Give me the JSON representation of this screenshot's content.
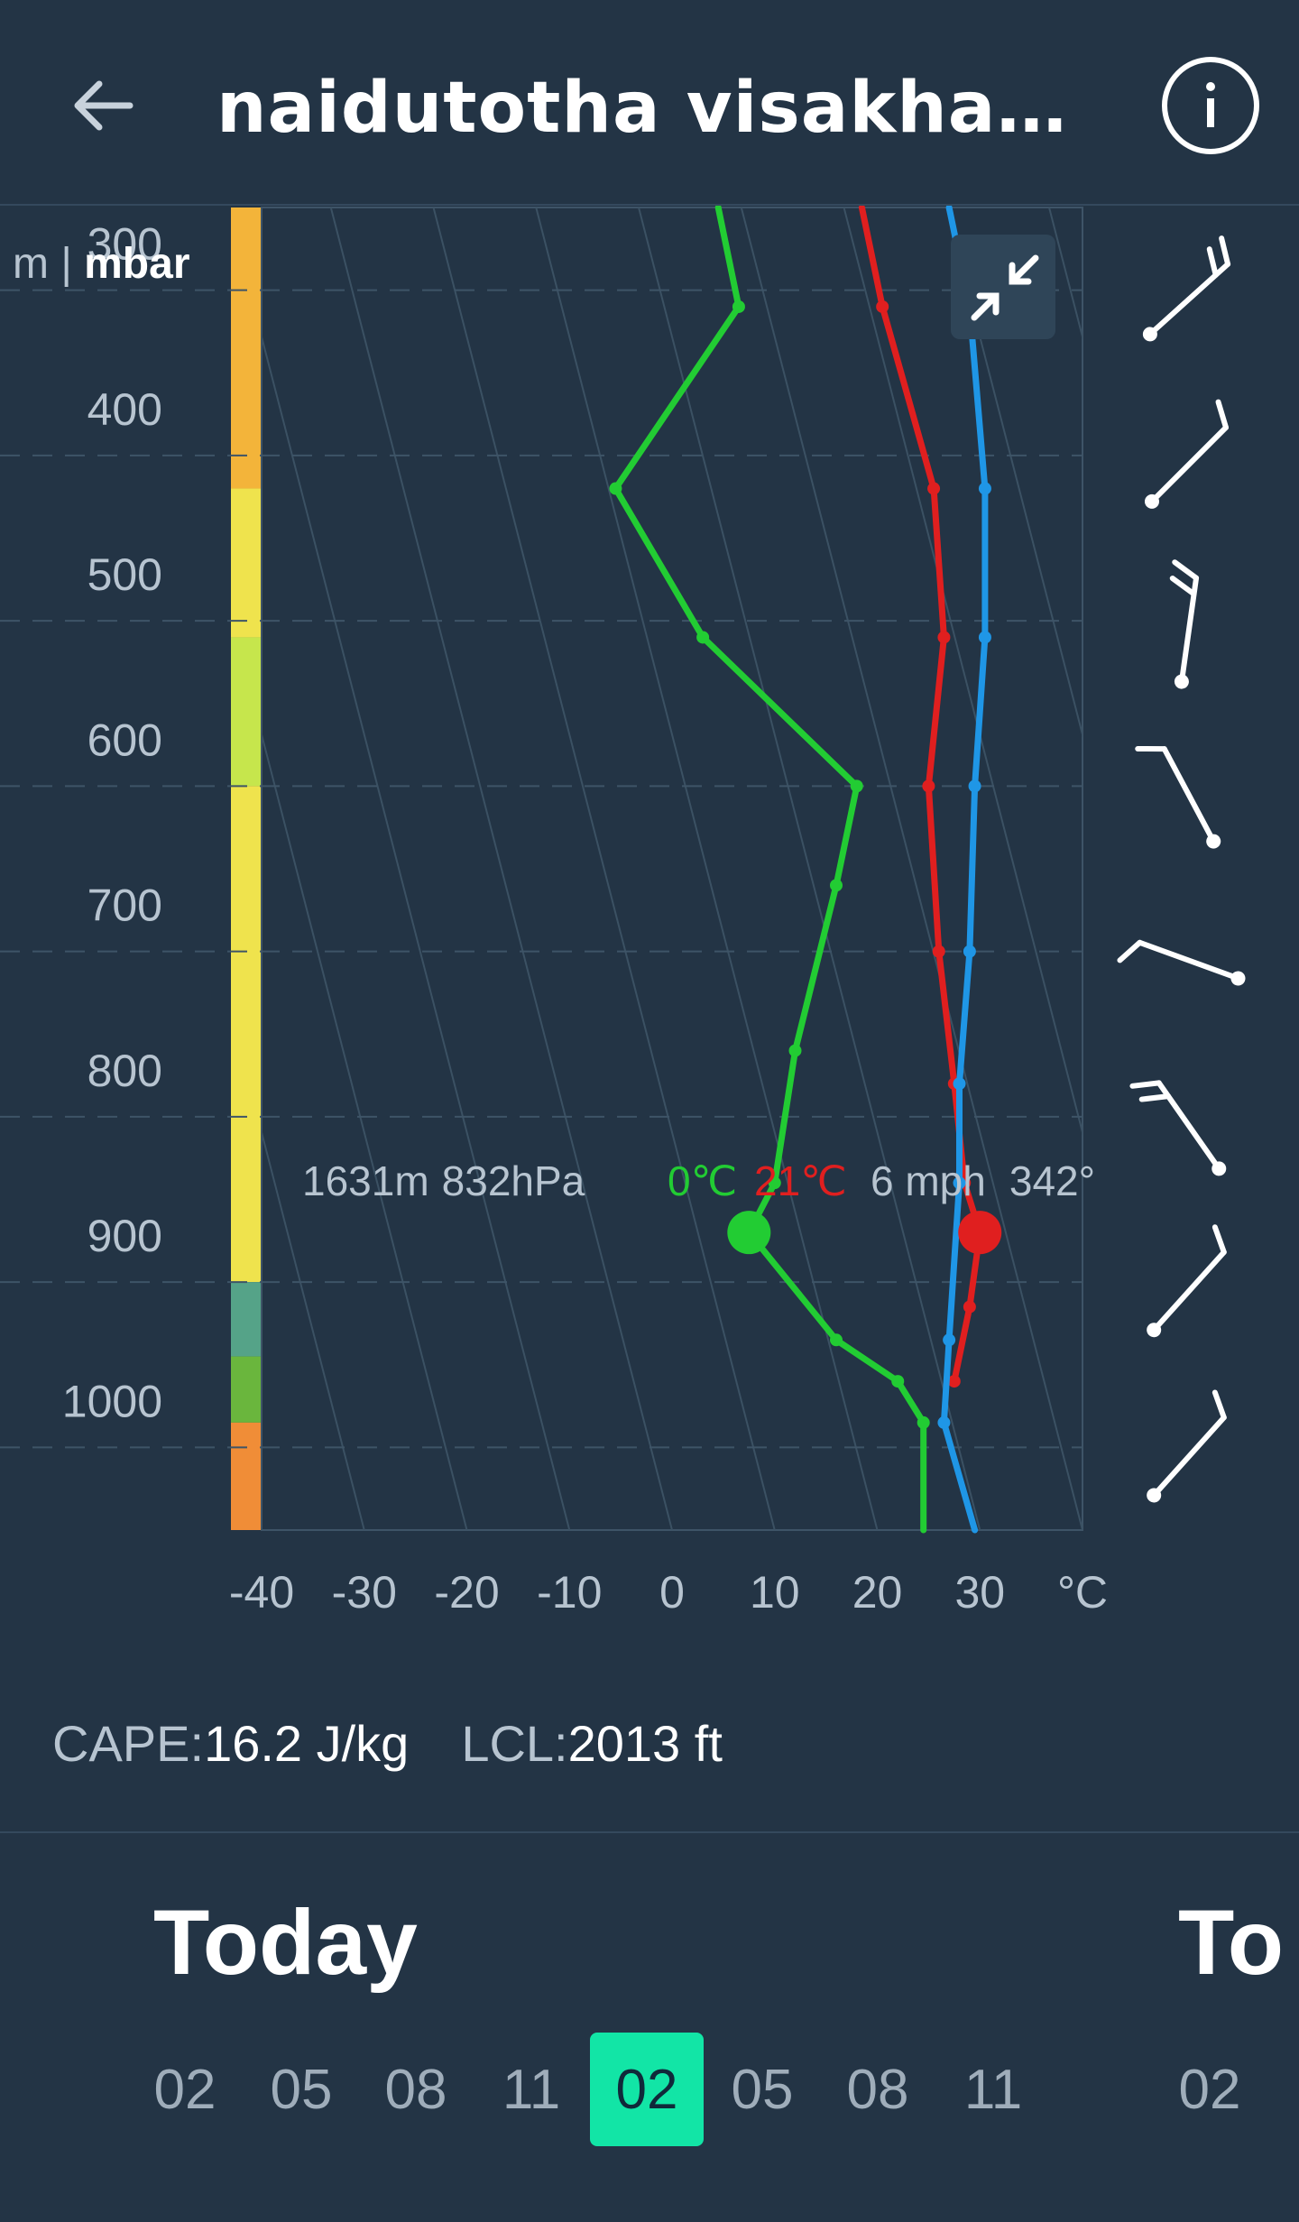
{
  "header": {
    "title": "naidutotha visakhapa…",
    "back_icon": "arrow-left-icon",
    "info_icon": "info-icon"
  },
  "chart_data": {
    "type": "line",
    "y_units_label": "m",
    "y_units_label_bold": "mbar",
    "xlabel": "°C",
    "x_ticks": [
      -40,
      -30,
      -20,
      -10,
      0,
      10,
      20,
      30
    ],
    "y_ticks": [
      300,
      400,
      500,
      600,
      700,
      800,
      900,
      1000
    ],
    "xlim": [
      -40,
      40
    ],
    "ylim": [
      250,
      1050
    ],
    "grid": true,
    "series": [
      {
        "color": "#22cc33",
        "points": [
          [
            4.5,
            250
          ],
          [
            6.5,
            310
          ],
          [
            -5.5,
            420
          ],
          [
            3,
            510
          ],
          [
            18,
            600
          ],
          [
            16,
            660
          ],
          [
            12,
            760
          ],
          [
            10,
            840
          ],
          [
            7.5,
            870
          ],
          [
            16,
            935
          ],
          [
            22,
            960
          ],
          [
            24.5,
            985
          ],
          [
            24.5,
            1050
          ]
        ]
      },
      {
        "color": "#e01f1f",
        "points": [
          [
            18.5,
            250
          ],
          [
            20.5,
            310
          ],
          [
            25.5,
            420
          ],
          [
            26.5,
            510
          ],
          [
            25,
            600
          ],
          [
            26,
            700
          ],
          [
            27.5,
            780
          ],
          [
            28.5,
            840
          ],
          [
            30,
            870
          ],
          [
            29,
            915
          ],
          [
            27.5,
            960
          ]
        ]
      },
      {
        "color": "#1f96e6",
        "points": [
          [
            27,
            250
          ],
          [
            29,
            310
          ],
          [
            30.5,
            420
          ],
          [
            30.5,
            510
          ],
          [
            29.5,
            600
          ],
          [
            29,
            700
          ],
          [
            28,
            780
          ],
          [
            28,
            840
          ],
          [
            27,
            935
          ],
          [
            26.5,
            985
          ],
          [
            29.5,
            1050
          ]
        ]
      }
    ],
    "height_bands": [
      {
        "from": 250,
        "to": 420,
        "color": "#f3b43a"
      },
      {
        "from": 420,
        "to": 510,
        "color": "#efe34d"
      },
      {
        "from": 510,
        "to": 600,
        "color": "#c6e64c"
      },
      {
        "from": 600,
        "to": 900,
        "color": "#efe34d"
      },
      {
        "from": 900,
        "to": 945,
        "color": "#55a388"
      },
      {
        "from": 945,
        "to": 985,
        "color": "#6ab63d"
      },
      {
        "from": 985,
        "to": 1050,
        "color": "#f08d37"
      }
    ],
    "markers": [
      {
        "series": 0,
        "x": 7.5,
        "y": 870
      },
      {
        "series": 1,
        "x": 30,
        "y": 870
      }
    ],
    "wind_barbs": [
      {
        "y": 300,
        "angle": 48,
        "barbs": 2
      },
      {
        "y": 400,
        "angle": 45,
        "barbs": 1
      },
      {
        "y": 500,
        "angle": 8,
        "barbs": 2
      },
      {
        "y": 600,
        "angle": -28,
        "barbs": 1
      },
      {
        "y": 700,
        "angle": -70,
        "barbs": 1
      },
      {
        "y": 800,
        "angle": -35,
        "barbs": 2
      },
      {
        "y": 900,
        "angle": 42,
        "barbs": 1
      },
      {
        "y": 1000,
        "angle": 42,
        "barbs": 1
      }
    ],
    "readout": {
      "height": "1631m",
      "pressure": "832hPa",
      "dewpoint": "0℃",
      "temp": "21℃",
      "wind_speed": "6 mph",
      "wind_dir": "342°"
    }
  },
  "stats": {
    "cape_label": "CAPE:",
    "cape_value": "16.2 J/kg",
    "lcl_label": "LCL:",
    "lcl_value": "2013 ft"
  },
  "timeline": {
    "day_today": "Today",
    "day_next": "To",
    "hours_today": [
      "02",
      "05",
      "08",
      "11",
      "02",
      "05",
      "08",
      "11"
    ],
    "hours_next": [
      "02"
    ],
    "selected_index": 4
  },
  "colors": {
    "background": "#233445",
    "accent": "#12e5a6"
  }
}
